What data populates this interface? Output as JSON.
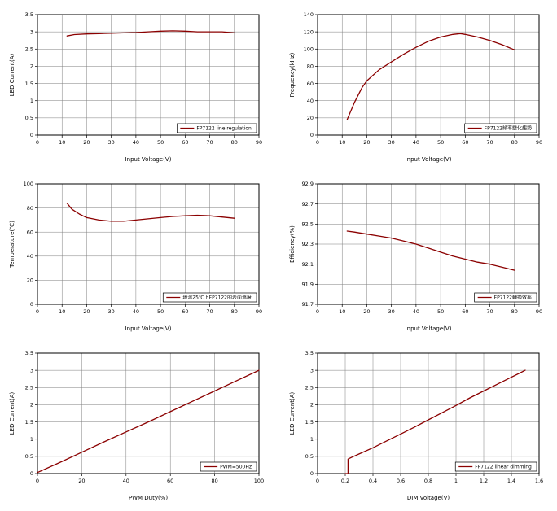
{
  "page": {
    "background": "#ffffff"
  },
  "style": {
    "series_color": "#8B0000",
    "grid_color": "#7f7f7f",
    "axis_color": "#000000",
    "legend_bg": "#ffffff"
  },
  "chart_data": [
    {
      "type": "line",
      "name": "line-regulation",
      "xlabel": "Input Voltage(V)",
      "ylabel": "LED Current(A)",
      "legend": "FP7122 line regulation",
      "xlim": [
        0,
        90
      ],
      "ylim": [
        0,
        3.5
      ],
      "xticks": [
        0,
        10,
        20,
        30,
        40,
        50,
        60,
        70,
        80,
        90
      ],
      "xtick_labels": [
        "0",
        "10",
        "20",
        "30",
        "40",
        "50",
        "60",
        "70",
        "80",
        "90"
      ],
      "yticks": [
        0,
        0.5,
        1,
        1.5,
        2,
        2.5,
        3,
        3.5
      ],
      "ytick_labels": [
        "0",
        "0.5",
        "1",
        "1.5",
        "2",
        "2.5",
        "3",
        "3.5"
      ],
      "x": [
        12,
        15,
        20,
        25,
        30,
        35,
        40,
        45,
        50,
        55,
        60,
        65,
        70,
        75,
        80
      ],
      "y": [
        2.88,
        2.92,
        2.94,
        2.95,
        2.96,
        2.97,
        2.98,
        3.0,
        3.02,
        3.03,
        3.02,
        3.0,
        3.0,
        3.0,
        2.97
      ]
    },
    {
      "type": "line",
      "name": "frequency-trend",
      "xlabel": "Input Voltage(V)",
      "ylabel": "Frequency(kHz)",
      "legend": "FP7122頻率變化趨勢",
      "xlim": [
        0,
        90
      ],
      "ylim": [
        0,
        140
      ],
      "xticks": [
        0,
        10,
        20,
        30,
        40,
        50,
        60,
        70,
        80,
        90
      ],
      "xtick_labels": [
        "0",
        "10",
        "20",
        "30",
        "40",
        "50",
        "60",
        "70",
        "80",
        "90"
      ],
      "yticks": [
        0,
        20,
        40,
        60,
        80,
        100,
        120,
        140
      ],
      "ytick_labels": [
        "0",
        "20",
        "40",
        "60",
        "80",
        "100",
        "120",
        "140"
      ],
      "x": [
        12,
        15,
        18,
        20,
        25,
        30,
        35,
        40,
        45,
        50,
        55,
        58,
        60,
        65,
        70,
        75,
        80
      ],
      "y": [
        18,
        38,
        55,
        63,
        76,
        85,
        94,
        102,
        109,
        114,
        117,
        118,
        117,
        114,
        110,
        105,
        99
      ]
    },
    {
      "type": "line",
      "name": "surface-temperature",
      "xlabel": "Input Voltage(V)",
      "ylabel": "Temperature(℃)",
      "legend": "環溫25℃下FP7122的表面溫度",
      "xlim": [
        0,
        90
      ],
      "ylim": [
        0,
        100
      ],
      "xticks": [
        0,
        10,
        20,
        30,
        40,
        50,
        60,
        70,
        80,
        90
      ],
      "xtick_labels": [
        "0",
        "10",
        "20",
        "30",
        "40",
        "50",
        "60",
        "70",
        "80",
        "90"
      ],
      "yticks": [
        0,
        20,
        40,
        60,
        80,
        100
      ],
      "ytick_labels": [
        "0",
        "20",
        "40",
        "60",
        "80",
        "100"
      ],
      "x": [
        12,
        14,
        17,
        20,
        25,
        30,
        35,
        40,
        45,
        50,
        55,
        60,
        65,
        70,
        75,
        80
      ],
      "y": [
        84,
        79,
        75,
        72,
        70,
        69,
        69,
        70,
        71,
        72,
        73,
        73.5,
        74,
        73.5,
        72.5,
        71.5
      ]
    },
    {
      "type": "line",
      "name": "efficiency",
      "xlabel": "Input Voltage(V)",
      "ylabel": "Efficiency(%)",
      "legend": "FP7122轉換效率",
      "xlim": [
        0,
        90
      ],
      "ylim": [
        91.7,
        92.9
      ],
      "xticks": [
        0,
        10,
        20,
        30,
        40,
        50,
        60,
        70,
        80,
        90
      ],
      "xtick_labels": [
        "0",
        "10",
        "20",
        "30",
        "40",
        "50",
        "60",
        "70",
        "80",
        "90"
      ],
      "yticks": [
        91.7,
        91.9,
        92.1,
        92.3,
        92.5,
        92.7,
        92.9
      ],
      "ytick_labels": [
        "91.7",
        "91.9",
        "92.1",
        "92.3",
        "92.5",
        "92.7",
        "92.9"
      ],
      "x": [
        12,
        15,
        20,
        25,
        30,
        35,
        40,
        45,
        50,
        55,
        60,
        65,
        70,
        75,
        80
      ],
      "y": [
        92.43,
        92.42,
        92.4,
        92.38,
        92.36,
        92.33,
        92.3,
        92.26,
        92.22,
        92.18,
        92.15,
        92.12,
        92.1,
        92.07,
        92.04
      ]
    },
    {
      "type": "line",
      "name": "pwm-dimming",
      "xlabel": "PWM Duty(%)",
      "ylabel": "LED Current(A)",
      "legend": "PWM=500Hz",
      "xlim": [
        0,
        100
      ],
      "ylim": [
        0,
        3.5
      ],
      "xticks": [
        0,
        20,
        40,
        60,
        80,
        100
      ],
      "xtick_labels": [
        "0",
        "20",
        "40",
        "60",
        "80",
        "100"
      ],
      "yticks": [
        0,
        0.5,
        1,
        1.5,
        2,
        2.5,
        3,
        3.5
      ],
      "ytick_labels": [
        "0",
        "0.5",
        "1",
        "1.5",
        "2",
        "2.5",
        "3",
        "3.5"
      ],
      "x": [
        0,
        10,
        20,
        30,
        40,
        50,
        60,
        70,
        80,
        90,
        100
      ],
      "y": [
        0.03,
        0.32,
        0.62,
        0.92,
        1.21,
        1.5,
        1.8,
        2.1,
        2.4,
        2.7,
        3.0
      ]
    },
    {
      "type": "line",
      "name": "linear-dimming",
      "xlabel": "DIM Voltage(V)",
      "ylabel": "LED Current(A)",
      "legend": "FP7122 linear dimming",
      "xlim": [
        0,
        1.6
      ],
      "ylim": [
        0,
        3.5
      ],
      "xticks": [
        0,
        0.2,
        0.4,
        0.6,
        0.8,
        1,
        1.2,
        1.4,
        1.6
      ],
      "xtick_labels": [
        "0",
        "0.2",
        "0.4",
        "0.6",
        "0.8",
        "1",
        "1.2",
        "1.4",
        "1.6"
      ],
      "yticks": [
        0,
        0.5,
        1,
        1.5,
        2,
        2.5,
        3,
        3.5
      ],
      "ytick_labels": [
        "0",
        "0.5",
        "1",
        "1.5",
        "2",
        "2.5",
        "3",
        "3.5"
      ],
      "x": [
        0.2,
        0.22,
        0.22,
        0.25,
        0.3,
        0.4,
        0.5,
        0.6,
        0.7,
        0.8,
        0.9,
        1.0,
        1.1,
        1.2,
        1.3,
        1.4,
        1.5
      ],
      "y": [
        0.0,
        0.0,
        0.42,
        0.48,
        0.57,
        0.75,
        0.95,
        1.15,
        1.35,
        1.56,
        1.77,
        1.98,
        2.2,
        2.4,
        2.6,
        2.8,
        3.0
      ]
    }
  ]
}
